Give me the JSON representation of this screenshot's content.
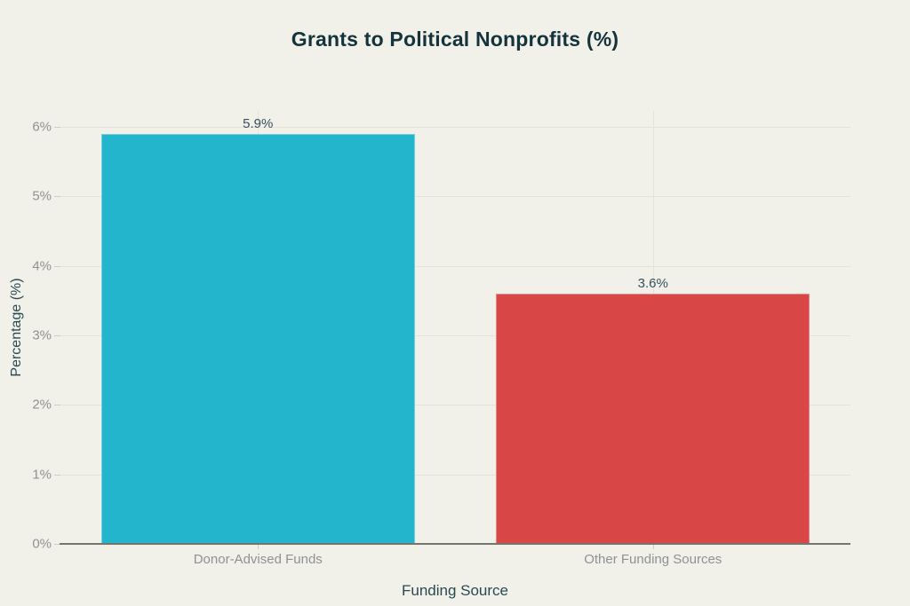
{
  "colors": {
    "background": "#f1f0e9",
    "title_text": "#14333c",
    "axis_title_text": "#294a53",
    "tick_label_text": "#8f9294",
    "value_label_text": "#39505c",
    "gridline": "#e4e3db",
    "axis_line": "#75756e",
    "tick_mark": "#cdcdc4",
    "bar_teal": "#22b5cc",
    "bar_red": "#d94646"
  },
  "chart_data": {
    "type": "bar",
    "title": "Grants to Political Nonprofits (%)",
    "xlabel": "Funding Source",
    "ylabel": "Percentage (%)",
    "categories": [
      "Donor-Advised Funds",
      "Other Funding Sources"
    ],
    "values": [
      5.9,
      3.6
    ],
    "value_labels": [
      "5.9%",
      "3.6%"
    ],
    "bar_colors": [
      "#22b5cc",
      "#d94646"
    ],
    "ylim": [
      0,
      6.23
    ],
    "yticks": [
      0,
      1,
      2,
      3,
      4,
      5,
      6
    ],
    "ytick_labels": [
      "0%",
      "1%",
      "2%",
      "3%",
      "4%",
      "5%",
      "6%"
    ],
    "grid": "on",
    "legend": "none"
  }
}
